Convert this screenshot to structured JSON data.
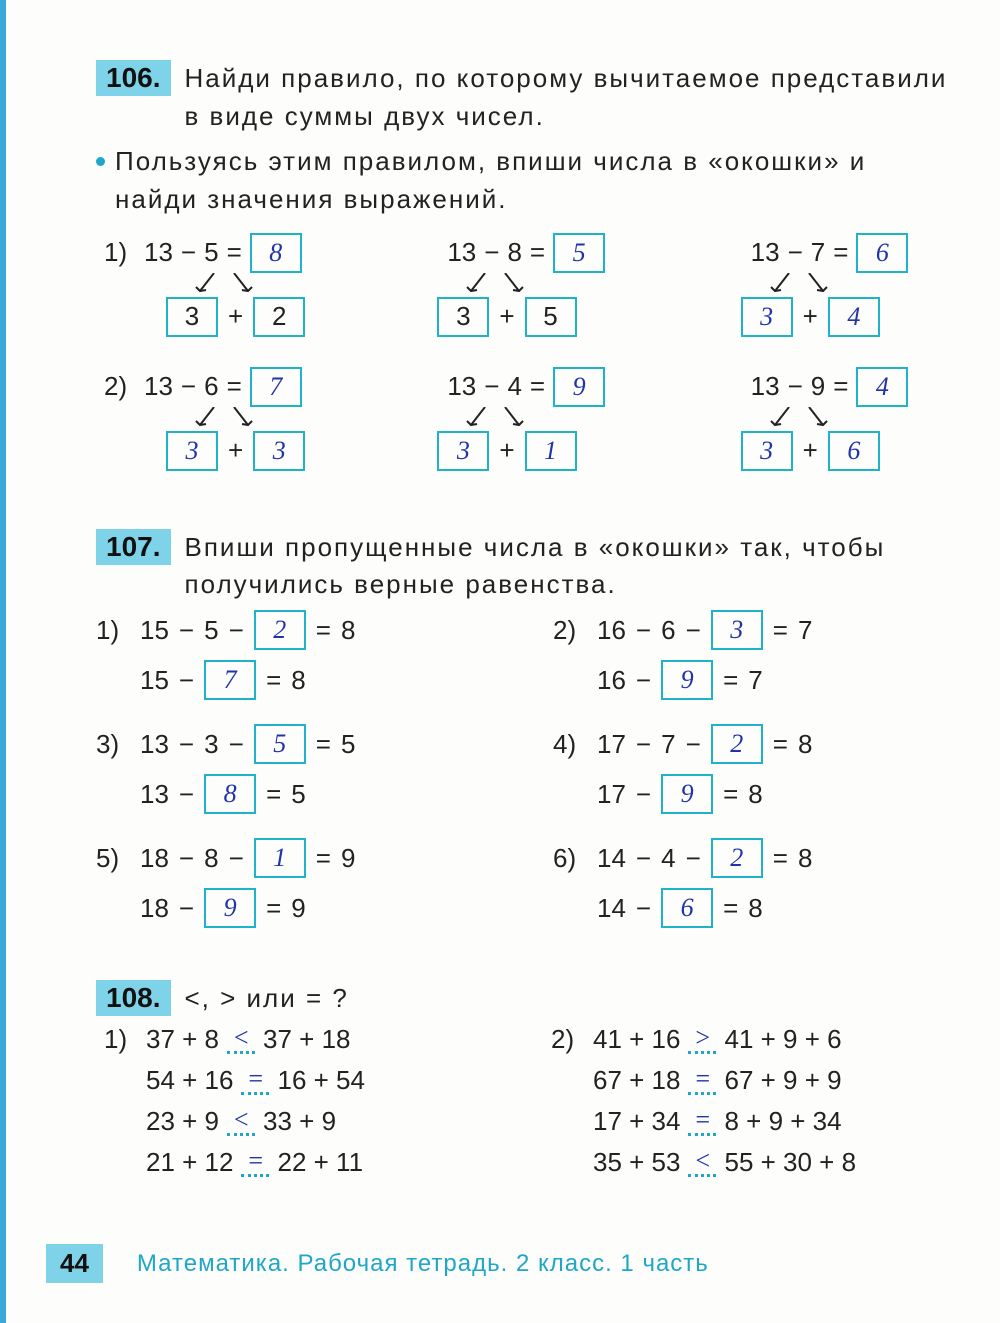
{
  "colors": {
    "badge_bg": "#7fd3e8",
    "border_accent": "#1fb3c9",
    "ink": "#2233aa",
    "text": "#222"
  },
  "page_number": "44",
  "footer": "Математика. Рабочая тетрадь. 2 класс. 1 часть",
  "p106": {
    "num": "106.",
    "text": "Найди правило, по которому вычитаемое представили в виде суммы двух чисел.",
    "sub": "Пользуясь этим правилом, впиши числа в «окошки» и найди значения выражений.",
    "rows": [
      {
        "label": "1)",
        "items": [
          {
            "a": "13",
            "op": "−",
            "b": "5",
            "res": "8",
            "d1": "3",
            "d1_hw": false,
            "d2": "2",
            "d2_hw": false
          },
          {
            "a": "13",
            "op": "−",
            "b": "8",
            "res": "5",
            "d1": "3",
            "d1_hw": false,
            "d2": "5",
            "d2_hw": false
          },
          {
            "a": "13",
            "op": "−",
            "b": "7",
            "res": "6",
            "d1": "3",
            "d1_hw": true,
            "d2": "4",
            "d2_hw": true
          }
        ]
      },
      {
        "label": "2)",
        "items": [
          {
            "a": "13",
            "op": "−",
            "b": "6",
            "res": "7",
            "d1": "3",
            "d1_hw": true,
            "d2": "3",
            "d2_hw": true
          },
          {
            "a": "13",
            "op": "−",
            "b": "4",
            "res": "9",
            "d1": "3",
            "d1_hw": true,
            "d2": "1",
            "d2_hw": true
          },
          {
            "a": "13",
            "op": "−",
            "b": "9",
            "res": "4",
            "d1": "3",
            "d1_hw": true,
            "d2": "6",
            "d2_hw": true
          }
        ]
      }
    ]
  },
  "p107": {
    "num": "107.",
    "text": "Впиши пропущенные числа в «окошки» так, чтобы получились верные равенства.",
    "pairs": [
      {
        "left_label": "1)",
        "left": {
          "top": {
            "a": "15",
            "b": "5",
            "ans": "2",
            "res": "8"
          },
          "bot": {
            "a": "15",
            "ans": "7",
            "res": "8"
          }
        },
        "right_label": "2)",
        "right": {
          "top": {
            "a": "16",
            "b": "6",
            "ans": "3",
            "res": "7"
          },
          "bot": {
            "a": "16",
            "ans": "9",
            "res": "7"
          }
        }
      },
      {
        "left_label": "3)",
        "left": {
          "top": {
            "a": "13",
            "b": "3",
            "ans": "5",
            "res": "5"
          },
          "bot": {
            "a": "13",
            "ans": "8",
            "res": "5"
          }
        },
        "right_label": "4)",
        "right": {
          "top": {
            "a": "17",
            "b": "7",
            "ans": "2",
            "res": "8"
          },
          "bot": {
            "a": "17",
            "ans": "9",
            "res": "8"
          }
        }
      },
      {
        "left_label": "5)",
        "left": {
          "top": {
            "a": "18",
            "b": "8",
            "ans": "1",
            "res": "9"
          },
          "bot": {
            "a": "18",
            "ans": "9",
            "res": "9"
          }
        },
        "right_label": "6)",
        "right": {
          "top": {
            "a": "14",
            "b": "4",
            "ans": "2",
            "res": "8"
          },
          "bot": {
            "a": "14",
            "ans": "6",
            "res": "8"
          }
        }
      }
    ]
  },
  "p108": {
    "num": "108.",
    "text": "<, > или = ?",
    "left_label": "1)",
    "right_label": "2)",
    "left": [
      {
        "l": "37 + 8",
        "ans": "<",
        "r": "37 + 18"
      },
      {
        "l": "54 + 16",
        "ans": "=",
        "r": "16 + 54"
      },
      {
        "l": "23 + 9",
        "ans": "<",
        "r": "33 + 9"
      },
      {
        "l": "21 + 12",
        "ans": "=",
        "r": "22 + 11"
      }
    ],
    "right": [
      {
        "l": "41 + 16",
        "ans": ">",
        "r": "41 + 9 + 6"
      },
      {
        "l": "67 + 18",
        "ans": "=",
        "r": "67 + 9 + 9"
      },
      {
        "l": "17 + 34",
        "ans": "=",
        "r": "8 + 9 + 34"
      },
      {
        "l": "35 + 53",
        "ans": "<",
        "r": "55 + 30 + 8"
      }
    ]
  }
}
